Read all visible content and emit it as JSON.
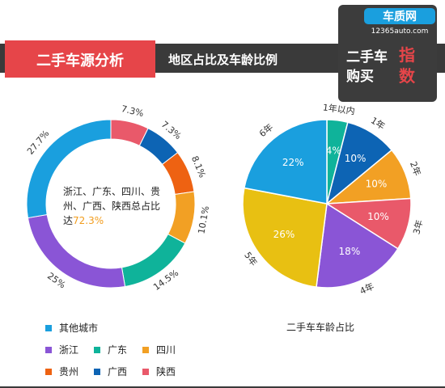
{
  "header": {
    "title": "二手车源分析",
    "subtitle": "地区占比及车龄比例"
  },
  "logo": {
    "brand": "车质网",
    "domain": "12365auto.com",
    "line1": "二手车",
    "line2": "购买",
    "accent1": "指",
    "accent2": "数"
  },
  "donut_note": {
    "text": "浙江、广东、四川、贵州、广西、陕西总占比达",
    "highlight": "72.3%"
  },
  "legend": [
    {
      "label": "其他城市",
      "color": "#1a9fde"
    },
    {
      "label": "浙江",
      "color": "#8a55d6"
    },
    {
      "label": "广东",
      "color": "#0fb39a"
    },
    {
      "label": "四川",
      "color": "#f2a024"
    },
    {
      "label": "贵州",
      "color": "#ee6212"
    },
    {
      "label": "广西",
      "color": "#0d64b4"
    },
    {
      "label": "陕西",
      "color": "#e9596a"
    }
  ],
  "pie_caption": "二手车车龄占比",
  "chart_data": [
    {
      "type": "pie",
      "variant": "donut",
      "categories": [
        "陕西",
        "广西",
        "贵州",
        "四川",
        "广东",
        "浙江",
        "其他城市"
      ],
      "values": [
        7.3,
        7.3,
        8.1,
        10.1,
        14.5,
        25,
        27.7
      ],
      "labels": [
        "7.3%",
        "7.3%",
        "8.1%",
        "10.1%",
        "14.5%",
        "25%",
        "27.7%"
      ],
      "colors": [
        "#e9596a",
        "#0d64b4",
        "#ee6212",
        "#f2a024",
        "#0fb39a",
        "#8a55d6",
        "#1a9fde"
      ]
    },
    {
      "type": "pie",
      "categories": [
        "1年以内",
        "1年",
        "2年",
        "3年",
        "4年",
        "5年",
        "6年"
      ],
      "values": [
        4,
        10,
        10,
        10,
        18,
        26,
        22
      ],
      "labels": [
        "4%",
        "10%",
        "10%",
        "10%",
        "18%",
        "26%",
        "22%"
      ],
      "colors": [
        "#0fb39a",
        "#0d64b4",
        "#f2a024",
        "#e9596a",
        "#8a55d6",
        "#e8c012",
        "#1a9fde"
      ],
      "title": "二手车车龄占比"
    }
  ]
}
